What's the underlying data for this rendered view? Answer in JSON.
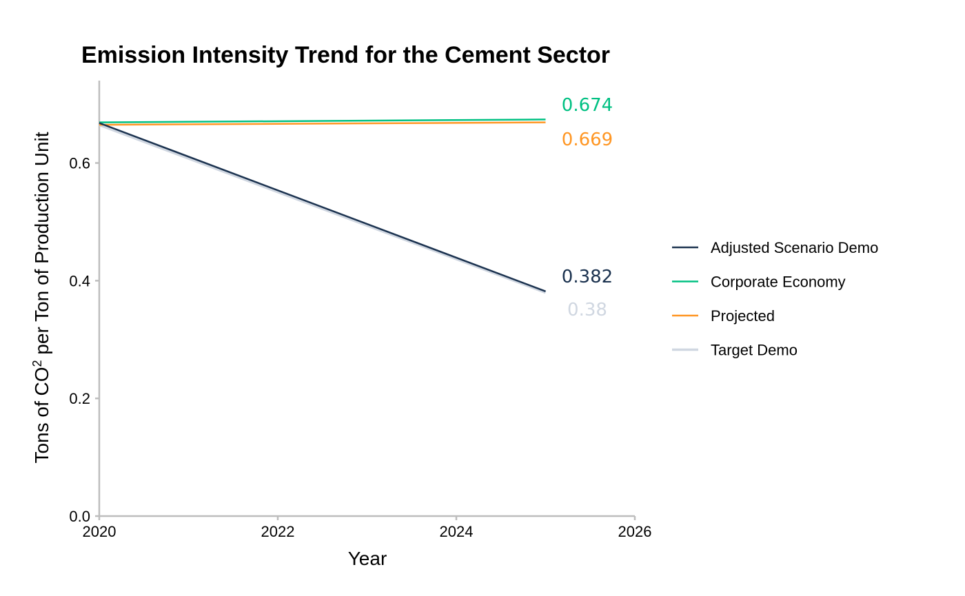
{
  "chart_data": {
    "type": "line",
    "title": "Emission Intensity Trend for the Cement Sector",
    "xlabel": "Year",
    "ylabel": "Tons of CO² per Ton of Production Unit",
    "ylabel_parts": {
      "before": "Tons of CO",
      "superscript": "2",
      "after": " per Ton of Production Unit"
    },
    "xlim": [
      2020,
      2026
    ],
    "ylim": [
      0,
      0.74
    ],
    "x_ticks": [
      2020,
      2022,
      2024,
      2026
    ],
    "y_ticks": [
      0.0,
      0.2,
      0.4,
      0.6
    ],
    "y_tick_labels": [
      "0.0",
      "0.2",
      "0.4",
      "0.6"
    ],
    "grid": false,
    "legend_position": "right",
    "series": [
      {
        "name": "Adjusted Scenario Demo",
        "color": "#1b324f",
        "x": [
          2020,
          2025
        ],
        "values": [
          0.668,
          0.382
        ],
        "end_label": "0.382"
      },
      {
        "name": "Corporate Economy",
        "color": "#00c082",
        "x": [
          2020,
          2025
        ],
        "values": [
          0.669,
          0.674
        ],
        "end_label": "0.674"
      },
      {
        "name": "Projected",
        "color": "#ff9623",
        "x": [
          2020,
          2025
        ],
        "values": [
          0.665,
          0.669
        ],
        "end_label": "0.669"
      },
      {
        "name": "Target Demo",
        "color": "#d0d7e1",
        "x": [
          2020,
          2025
        ],
        "values": [
          0.665,
          0.38
        ],
        "end_label": "0.38"
      }
    ]
  }
}
